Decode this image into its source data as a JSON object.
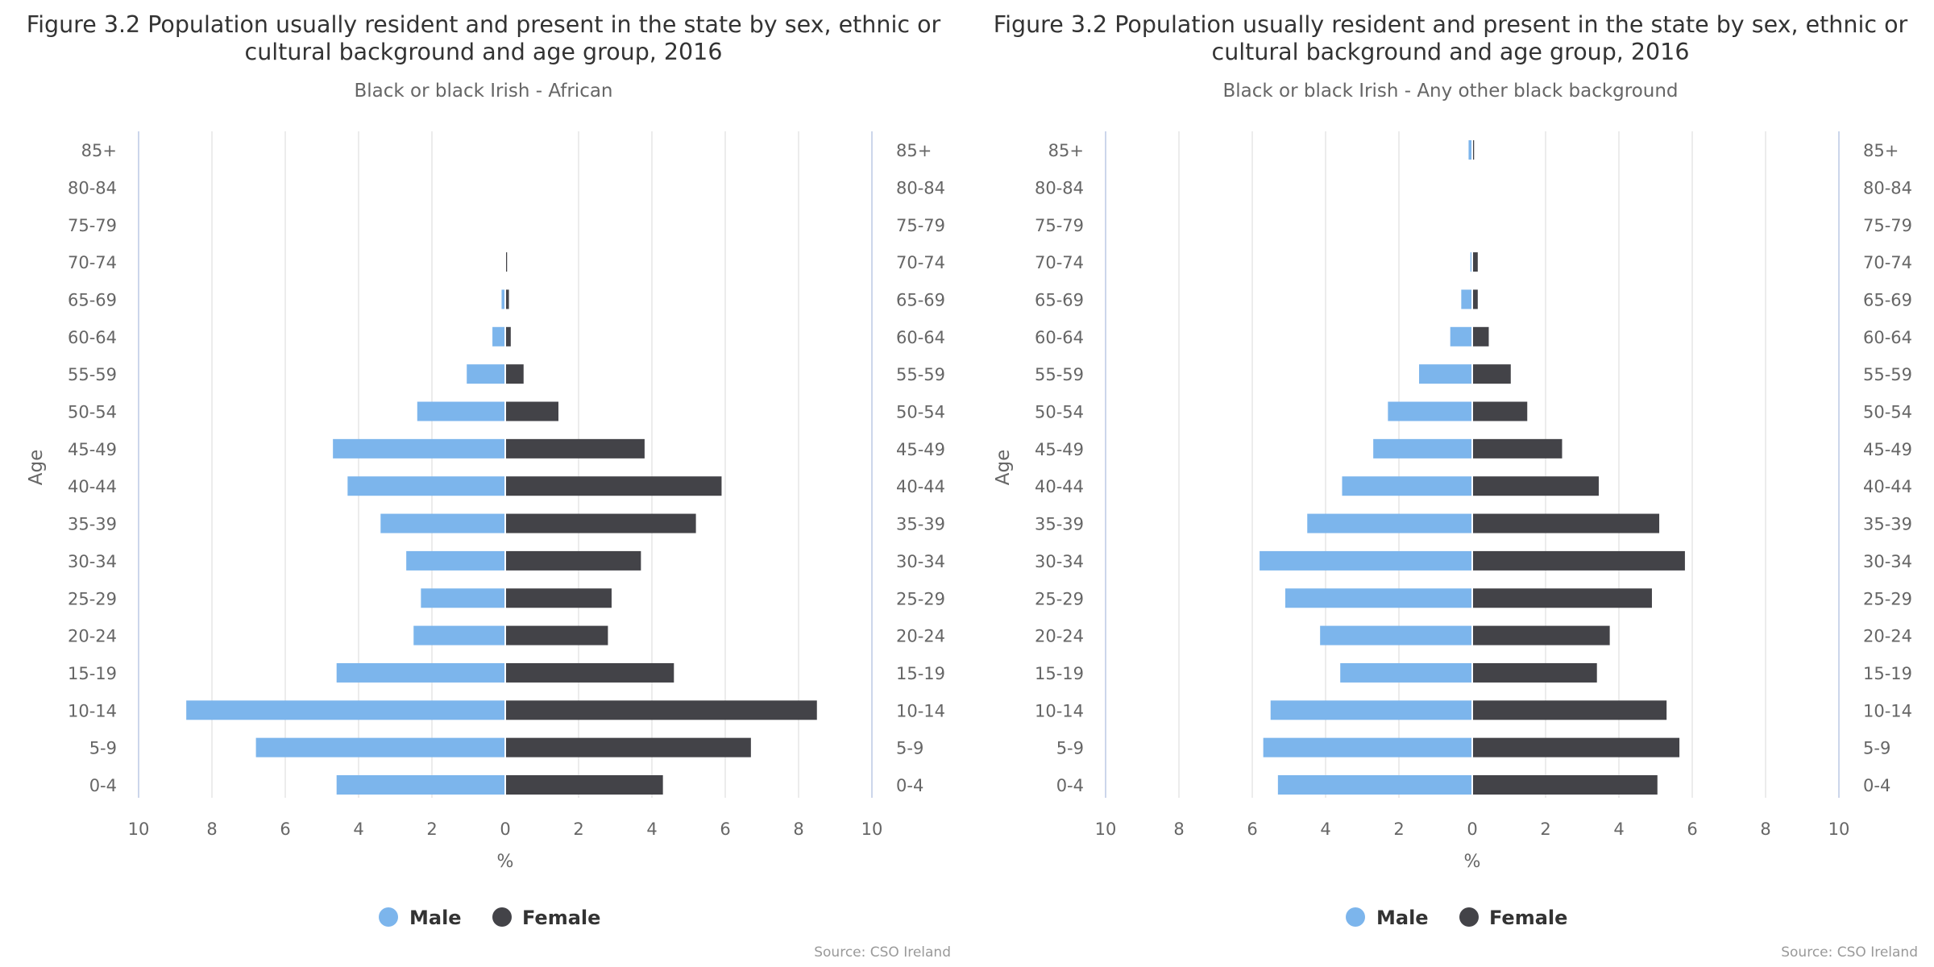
{
  "chart_data": [
    {
      "type": "bar",
      "orientation": "horizontal-population-pyramid",
      "title": "Figure 3.2 Population usually resident and present in the state by sex, ethnic or cultural background and age group, 2016",
      "subtitle": "Black or black Irish - African",
      "ylabel": "Age",
      "xlabel": "%",
      "xlim": [
        -10,
        10
      ],
      "xticks": [
        "10",
        "8",
        "6",
        "4",
        "2",
        "0",
        "2",
        "4",
        "6",
        "8",
        "10"
      ],
      "grid": true,
      "legend_position": "bottom",
      "categories": [
        "0-4",
        "5-9",
        "10-14",
        "15-19",
        "20-24",
        "25-29",
        "30-34",
        "35-39",
        "40-44",
        "45-49",
        "50-54",
        "55-59",
        "60-64",
        "65-69",
        "70-74",
        "75-79",
        "80-84",
        "85+"
      ],
      "series": [
        {
          "name": "Male",
          "color": "#7cb5ec",
          "values": [
            4.6,
            6.8,
            8.7,
            4.6,
            2.5,
            2.3,
            2.7,
            3.4,
            4.3,
            4.7,
            2.4,
            1.05,
            0.35,
            0.1,
            0.02,
            0.0,
            0.0,
            0.0
          ]
        },
        {
          "name": "Female",
          "color": "#434348",
          "values": [
            4.3,
            6.7,
            8.5,
            4.6,
            2.8,
            2.9,
            3.7,
            5.2,
            5.9,
            3.8,
            1.45,
            0.5,
            0.15,
            0.1,
            0.05,
            0.0,
            0.0,
            0.0
          ]
        }
      ],
      "source": "Source: CSO Ireland"
    },
    {
      "type": "bar",
      "orientation": "horizontal-population-pyramid",
      "title": "Figure 3.2 Population usually resident and present in the state by sex, ethnic or cultural background and age group, 2016",
      "subtitle": "Black or black Irish - Any other black background",
      "ylabel": "Age",
      "xlabel": "%",
      "xlim": [
        -10,
        10
      ],
      "xticks": [
        "10",
        "8",
        "6",
        "4",
        "2",
        "0",
        "2",
        "4",
        "6",
        "8",
        "10"
      ],
      "grid": true,
      "legend_position": "bottom",
      "categories": [
        "0-4",
        "5-9",
        "10-14",
        "15-19",
        "20-24",
        "25-29",
        "30-34",
        "35-39",
        "40-44",
        "45-49",
        "50-54",
        "55-59",
        "60-64",
        "65-69",
        "70-74",
        "75-79",
        "80-84",
        "85+"
      ],
      "series": [
        {
          "name": "Male",
          "color": "#7cb5ec",
          "values": [
            5.3,
            5.7,
            5.5,
            3.6,
            4.15,
            5.1,
            5.8,
            4.5,
            3.55,
            2.7,
            2.3,
            1.45,
            0.6,
            0.3,
            0.05,
            0.0,
            0.0,
            0.1
          ]
        },
        {
          "name": "Female",
          "color": "#434348",
          "values": [
            5.05,
            5.65,
            5.3,
            3.4,
            3.75,
            4.9,
            5.8,
            5.1,
            3.45,
            2.45,
            1.5,
            1.05,
            0.45,
            0.15,
            0.15,
            0.0,
            0.0,
            0.05
          ]
        }
      ],
      "source": "Source: CSO Ireland"
    }
  ]
}
